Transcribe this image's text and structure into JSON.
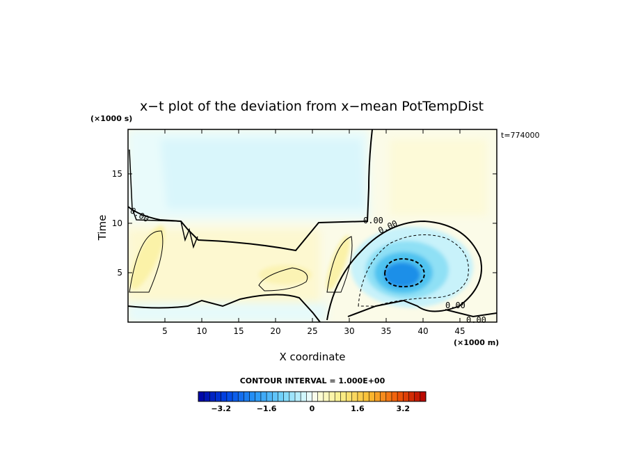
{
  "chart_data": {
    "type": "heatmap",
    "title": "x−t plot of the deviation from x−mean PotTempDist",
    "xlabel": "X coordinate",
    "ylabel": "Time",
    "x_unit": "(×1000 m)",
    "y_unit": "(×1000 s)",
    "time_stamp": "t=774000",
    "xlim": [
      0,
      50
    ],
    "ylim": [
      0,
      19.5
    ],
    "x_ticks": [
      5,
      10,
      15,
      20,
      25,
      30,
      35,
      40,
      45
    ],
    "y_ticks": [
      5,
      10,
      15
    ],
    "x_tick_labels": [
      "5",
      "10",
      "15",
      "20",
      "25",
      "30",
      "35",
      "40",
      "45"
    ],
    "y_tick_labels": [
      "5",
      "10",
      "15"
    ],
    "contour_labels": [
      "0.00",
      "0.00",
      "0.00",
      "0.00",
      "0.00",
      "0.00"
    ],
    "contour_interval_text": "CONTOUR INTERVAL = 1.000E+00",
    "colorbar": {
      "range": [
        -4,
        4
      ],
      "step": 0.2,
      "tick_values": [
        -3.2,
        -1.6,
        0,
        1.6,
        3.2
      ],
      "tick_labels": [
        "−3.2",
        "−1.6",
        "0",
        "1.6",
        "3.2"
      ]
    },
    "features": [
      {
        "type": "cold_core",
        "x": 37,
        "y": 5,
        "min": -2.2
      },
      {
        "type": "warm_band",
        "x": 3.5,
        "y": 5.5,
        "max": 0.6
      },
      {
        "type": "warm_band",
        "x": 28.5,
        "y": 6.5,
        "max": 0.6
      },
      {
        "type": "warm_patch",
        "x": 21,
        "y": 4.5,
        "max": 0.5
      },
      {
        "type": "cool_region",
        "x_range": [
          0,
          32
        ],
        "y_range": [
          10.5,
          19.5
        ],
        "value": -0.4
      }
    ]
  }
}
